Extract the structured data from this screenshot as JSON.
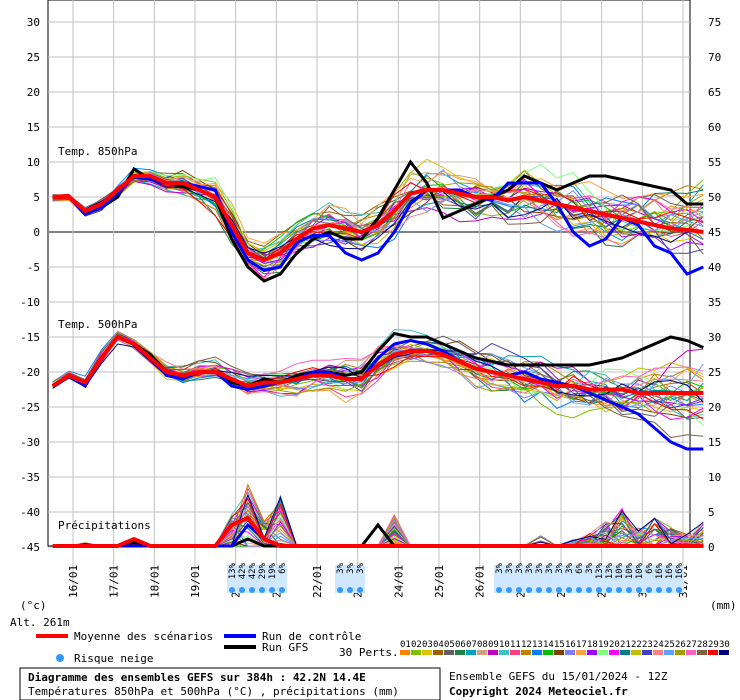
{
  "chart_data": {
    "type": "line",
    "title": "Diagramme des ensembles GEFS sur 384h : 42.2N 14.4E",
    "subtitle": "Températures 850hPa et 500hPa (°C) , précipitations (mm)",
    "run_info": "Ensemble GEFS du 15/01/2024 - 12Z",
    "copyright": "Copyright 2024 Meteociel.fr",
    "altitude": "Alt. 261m",
    "ylabel_left": "(°c)",
    "ylabel_right": "(mm)",
    "left_ticks": [
      "30",
      "25",
      "20",
      "15",
      "10",
      "5",
      "0",
      "-5",
      "-10",
      "-15",
      "-20",
      "-25",
      "-30",
      "-35",
      "-40",
      "-45"
    ],
    "right_ticks": [
      "75",
      "70",
      "65",
      "60",
      "55",
      "50",
      "45",
      "40",
      "35",
      "30",
      "25",
      "20",
      "15",
      "10",
      "5",
      "0"
    ],
    "x_labels": [
      "16/01",
      "17/01",
      "18/01",
      "19/01",
      "20/01",
      "21/01",
      "22/01",
      "23/01",
      "24/01",
      "25/01",
      "26/01",
      "27/01",
      "28/01",
      "29/01",
      "30/01",
      "31/01"
    ],
    "section_labels": {
      "t850": "Temp. 850hPa",
      "t500": "Temp. 500hPa",
      "precip": "Précipitations"
    },
    "snow_risk": {
      "group1": [
        "13%",
        "42%",
        "42%",
        "29%",
        "19%",
        "6%"
      ],
      "group2": [
        "3%",
        "3%",
        "3%"
      ],
      "group3": [
        "3%",
        "3%",
        "3%",
        "3%",
        "3%",
        "3%",
        "3%",
        "3%",
        "6%",
        "3%",
        "13%",
        "13%",
        "10%",
        "10%",
        "10%",
        "6%",
        "16%",
        "16%",
        "16%"
      ]
    },
    "legend": {
      "mean": "Moyenne des scénarios",
      "control": "Run de contrôle",
      "gfs": "Run GFS",
      "perts": "30 Perts.",
      "snow": "Risque neige",
      "pert_numbers": [
        "01",
        "02",
        "03",
        "04",
        "05",
        "06",
        "07",
        "08",
        "09",
        "10",
        "11",
        "12",
        "13",
        "14",
        "15",
        "16",
        "17",
        "18",
        "19",
        "20",
        "21",
        "22",
        "23",
        "24",
        "25",
        "26",
        "27",
        "28",
        "29",
        "30"
      ]
    },
    "colors": {
      "mean": "#ff0000",
      "control": "#0000ff",
      "gfs": "#000000",
      "grid": "#c0c0c0",
      "snow": "#3399ff",
      "perts": [
        "#ff8000",
        "#80c000",
        "#e0c000",
        "#a06000",
        "#606060",
        "#208040",
        "#00a0c0",
        "#d0a080",
        "#c000c0",
        "#40c0c0",
        "#ff4080",
        "#c08000",
        "#0080ff",
        "#00c000",
        "#804000",
        "#8080ff",
        "#ffa040",
        "#a000ff",
        "#80ff80",
        "#ff00ff",
        "#008080",
        "#c0c000",
        "#4040c0",
        "#ff8080",
        "#60a0ff",
        "#a0a000",
        "#ff60c0",
        "#806040",
        "#ff0000",
        "#000080"
      ]
    },
    "x_range_hours": [
      0,
      384
    ],
    "t850": {
      "mean": [
        5,
        5,
        3,
        4,
        6,
        8,
        8,
        7,
        7,
        6,
        5,
        1,
        -3,
        -4,
        -3,
        -1,
        0.5,
        1,
        0.5,
        0,
        1,
        3,
        5.5,
        6,
        6,
        5.5,
        5,
        5,
        4.5,
        5,
        4.5,
        4,
        3.5,
        3,
        2.5,
        2,
        1.5,
        1,
        0.5,
        0.3,
        0
      ],
      "control": [
        5,
        5,
        2.5,
        3.5,
        5.5,
        8,
        7.5,
        7,
        7,
        6.5,
        6,
        0,
        -4,
        -5.5,
        -5,
        -1.5,
        -0.5,
        -0.5,
        -3,
        -4,
        -3,
        0,
        4,
        6,
        6,
        6,
        5,
        4.5,
        7,
        7,
        7,
        4,
        0,
        -2,
        -1,
        2,
        1,
        -2,
        -3,
        -6,
        -5
      ],
      "gfs": [
        5,
        5,
        3,
        3.5,
        5,
        9,
        7.5,
        7,
        6.5,
        6,
        5,
        -1,
        -5,
        -7,
        -6,
        -3,
        -1,
        0,
        -1,
        -1,
        2,
        6,
        10,
        7,
        2,
        3,
        4,
        5,
        6,
        8,
        7,
        6,
        7,
        8,
        8,
        7.5,
        7,
        6.5,
        6,
        4,
        4
      ]
    },
    "t500": {
      "mean": [
        -22,
        -20.5,
        -21.5,
        -18,
        -15,
        -16,
        -18,
        -20,
        -20.5,
        -20,
        -20,
        -21,
        -22,
        -21.5,
        -21.5,
        -21,
        -20.5,
        -20.5,
        -21,
        -21,
        -19,
        -17.5,
        -17,
        -17,
        -17.5,
        -18.5,
        -19.5,
        -20,
        -20.5,
        -21,
        -21.5,
        -22,
        -22,
        -22.5,
        -22.5,
        -22.5,
        -23,
        -23,
        -23,
        -23,
        -23
      ],
      "control": [
        -22,
        -20.5,
        -22,
        -18,
        -15,
        -16,
        -18,
        -20.5,
        -21,
        -20,
        -20,
        -22,
        -22.5,
        -22,
        -21.5,
        -21,
        -20,
        -20,
        -21,
        -21,
        -18,
        -16,
        -15.5,
        -16,
        -17,
        -18.5,
        -19.5,
        -20,
        -20.5,
        -20,
        -21,
        -21.5,
        -22,
        -23,
        -24,
        -25,
        -26,
        -28,
        -30,
        -31,
        -31
      ],
      "gfs": [
        -22,
        -20.5,
        -22,
        -18,
        -15,
        -16,
        -17.5,
        -20,
        -21,
        -20,
        -20,
        -21.5,
        -22,
        -21,
        -21.5,
        -20.5,
        -20,
        -20,
        -20.5,
        -20,
        -17,
        -14.5,
        -15,
        -15,
        -16,
        -17,
        -18,
        -18.5,
        -19,
        -19,
        -19,
        -19,
        -19,
        -19,
        -18.5,
        -18,
        -17,
        -16,
        -15,
        -15.5,
        -16.5
      ]
    },
    "precip": {
      "mean": [
        0,
        0,
        0,
        0,
        0,
        1,
        0,
        0,
        0,
        0,
        0,
        3,
        4,
        1,
        0,
        0,
        0,
        0,
        0,
        0,
        0,
        0,
        0,
        0,
        0,
        0,
        0,
        0,
        0,
        0,
        0,
        0,
        0,
        0,
        0,
        0,
        0,
        0,
        0,
        0,
        0
      ],
      "control": [
        0,
        0,
        0,
        0,
        0,
        0,
        0,
        0,
        0,
        0,
        0,
        0,
        3,
        1,
        0,
        0,
        0,
        0,
        0,
        0,
        0,
        0,
        0,
        0,
        0,
        0,
        0,
        0,
        0,
        0,
        0,
        0,
        0,
        0,
        0,
        0,
        0,
        0,
        0,
        0,
        0
      ],
      "gfs": [
        0,
        0,
        0,
        0,
        0,
        0.5,
        0,
        0,
        0,
        0,
        0,
        0,
        1,
        0,
        0,
        0,
        0,
        0,
        0,
        0,
        3,
        0,
        0,
        0,
        0,
        0,
        0,
        0,
        0,
        0,
        0,
        0,
        0,
        0,
        0,
        0,
        0,
        0,
        0,
        0,
        0
      ]
    },
    "perturbation_spread": {
      "t850_spread": [
        0.5,
        0.5,
        0.8,
        1,
        1,
        1.2,
        1.2,
        1.5,
        1.8,
        2,
        2.5,
        3,
        3,
        3,
        3,
        3,
        3,
        3.5,
        3.5,
        3.5,
        3.5,
        4,
        4,
        4,
        4,
        4,
        4,
        4,
        4.5,
        4.5,
        4.5,
        4.5,
        5,
        5,
        5,
        5,
        5,
        5.5,
        5.5,
        5.5,
        5.5
      ],
      "t500_spread": [
        0.5,
        0.5,
        0.8,
        1,
        1,
        1,
        1.2,
        1.5,
        1.8,
        2,
        2,
        2,
        2,
        2,
        2,
        2.5,
        2.5,
        2.5,
        3,
        3,
        3,
        3,
        3,
        3,
        3,
        3,
        3,
        3.5,
        3.5,
        4,
        4,
        4,
        4.5,
        4.5,
        5,
        5,
        5,
        5.5,
        5.5,
        5.5,
        5.5
      ],
      "precip_max": [
        0,
        0,
        0.5,
        0,
        0,
        1,
        0,
        0,
        0,
        0,
        0,
        5,
        10,
        4,
        8,
        0,
        0,
        0,
        0,
        0,
        0,
        5,
        0,
        0,
        0,
        0,
        0,
        0,
        0,
        0,
        2,
        0,
        1,
        2,
        4,
        6,
        3,
        5,
        3,
        2,
        4
      ]
    }
  }
}
